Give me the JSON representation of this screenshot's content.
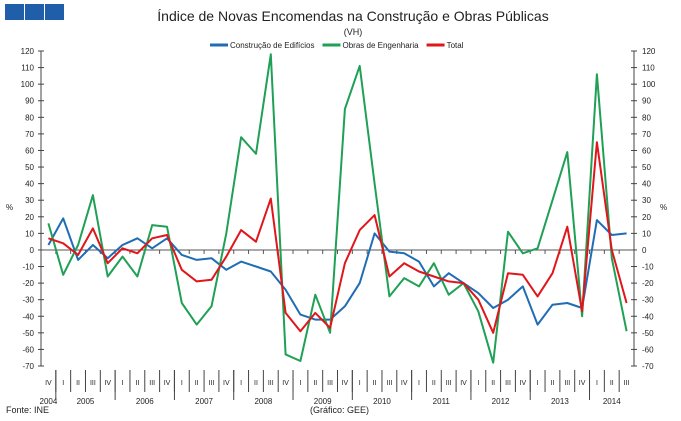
{
  "chart_data": {
    "type": "line",
    "title": "Índice de Novas Encomendas na Construção e Obras Públicas",
    "subtitle": "(VH)",
    "ylabel": "%",
    "ylim": [
      -70,
      120
    ],
    "ytick_step": 10,
    "legend_position": "top-center",
    "quarters": [
      "IV",
      "I",
      "II",
      "III",
      "IV",
      "I",
      "II",
      "III",
      "IV",
      "I",
      "II",
      "III",
      "IV",
      "I",
      "II",
      "III",
      "IV",
      "I",
      "II",
      "III",
      "IV",
      "I",
      "II",
      "III",
      "IV",
      "I",
      "II",
      "III",
      "IV",
      "I",
      "II",
      "III",
      "IV",
      "I",
      "II",
      "III",
      "IV",
      "I",
      "II",
      "III"
    ],
    "years": [
      {
        "label": "2004",
        "count": 1
      },
      {
        "label": "2005",
        "count": 4
      },
      {
        "label": "2006",
        "count": 4
      },
      {
        "label": "2007",
        "count": 4
      },
      {
        "label": "2008",
        "count": 4
      },
      {
        "label": "2009",
        "count": 4
      },
      {
        "label": "2010",
        "count": 4
      },
      {
        "label": "2011",
        "count": 4
      },
      {
        "label": "2012",
        "count": 4
      },
      {
        "label": "2013",
        "count": 4
      },
      {
        "label": "2014",
        "count": 3
      }
    ],
    "series": [
      {
        "name": "Construção de Edifícios",
        "color": "#1f6db5",
        "values": [
          3,
          19,
          -6,
          3,
          -5,
          3,
          7,
          1,
          7,
          -3,
          -6,
          -5,
          -12,
          -7,
          -10,
          -13,
          -24,
          -39,
          -42,
          -42,
          -34,
          -20,
          10,
          -1,
          -2,
          -7,
          -22,
          -14,
          -20,
          -26,
          -35,
          -30,
          -22,
          -45,
          -33,
          -32,
          -35,
          18,
          9,
          10
        ]
      },
      {
        "name": "Obras de Engenharia",
        "color": "#1fa055",
        "values": [
          16,
          -15,
          3,
          33,
          -16,
          -4,
          -16,
          15,
          14,
          -32,
          -45,
          -34,
          10,
          68,
          58,
          118,
          -63,
          -67,
          -27,
          -50,
          85,
          111,
          40,
          -28,
          -17,
          -22,
          -8,
          -27,
          -20,
          -37,
          -68,
          11,
          -2,
          1,
          30,
          59,
          -40,
          106,
          -5,
          -49
        ]
      },
      {
        "name": "Total",
        "color": "#e0161b",
        "values": [
          7,
          4,
          -3,
          13,
          -8,
          1,
          -2,
          7,
          9,
          -12,
          -19,
          -18,
          -4,
          12,
          5,
          31,
          -38,
          -49,
          -38,
          -47,
          -8,
          12,
          21,
          -16,
          -8,
          -13,
          -16,
          -19,
          -20,
          -30,
          -50,
          -14,
          -15,
          -28,
          -14,
          14,
          -37,
          65,
          0,
          -32
        ]
      }
    ]
  },
  "footer": {
    "source": "Fonte: INE",
    "credit": "(Gráfico: GEE)"
  }
}
